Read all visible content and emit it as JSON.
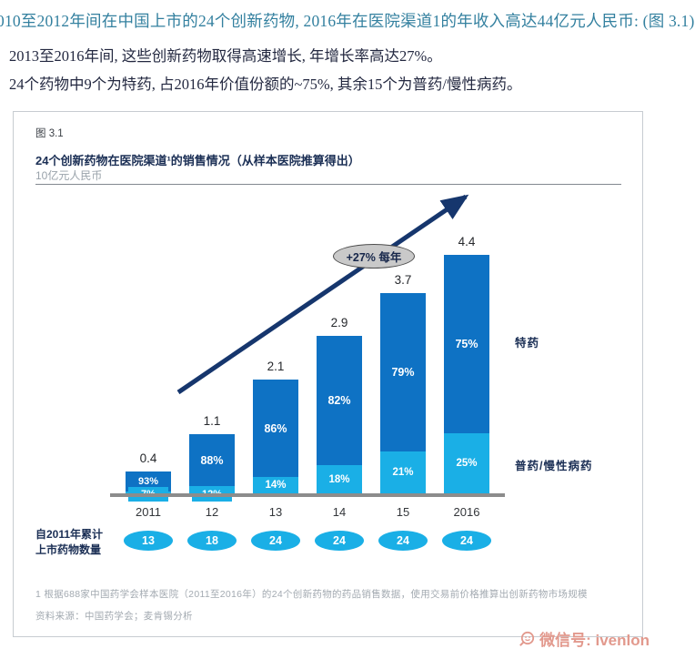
{
  "header": {
    "line1": "010至2012年间在中国上市的24个创新药物, 2016年在医院渠道1的年收入高达44亿元人民币: (图 3.1)",
    "line2": "2013至2016年间, 这些创新药物取得高速增长, 年增长率高达27%。",
    "line3": "24个药物中9个为特药, 占2016年价值份额的~75%, 其余15个为普药/慢性病药。"
  },
  "figure": {
    "fig_label": "图 3.1",
    "title": "24个创新药物在医院渠道¹的销售情况（从样本医院推算得出）",
    "unit": "10亿元人民币",
    "growth_badge": "+27% 每年",
    "legend_specialty": "特药",
    "legend_generic": "普药/慢性病药",
    "cumulative_label_line1": "自2011年累计",
    "cumulative_label_line2": "上市药物数量",
    "footnote": "1 根据688家中国药学会样本医院（2011至2016年）的24个创新药物的药品销售数据，使用交易前价格推算出创新药物市场规模",
    "source": "资料来源：中国药学会；麦肯锡分析"
  },
  "chart_data": {
    "type": "bar",
    "stacked": true,
    "title": "24个创新药物在医院渠道1的销售情况（从样本医院推算得出）",
    "ylabel": "10亿元人民币",
    "categories": [
      "2011",
      "12",
      "13",
      "14",
      "15",
      "2016"
    ],
    "totals": [
      0.4,
      1.1,
      2.1,
      2.9,
      3.7,
      4.4
    ],
    "series": [
      {
        "name": "特药",
        "color": "#0e72c4",
        "pct": [
          93,
          88,
          86,
          82,
          79,
          75
        ]
      },
      {
        "name": "普药/慢性病药",
        "color": "#1aafe6",
        "pct": [
          7,
          12,
          14,
          18,
          21,
          25
        ]
      }
    ],
    "cumulative_counts": [
      13,
      18,
      24,
      24,
      24,
      24
    ],
    "annotation": "+27% 每年",
    "legend_position": "right",
    "grid": false
  },
  "watermark": {
    "text": "微信号: ivenlon"
  },
  "colors": {
    "specialty_blue": "#0e72c4",
    "generic_blue": "#1aafe6",
    "arrow_navy": "#16366d",
    "axis_gray": "#8c8c8c",
    "title_navy": "#1b2f55",
    "header_teal": "#33809f",
    "watermark_red": "#e2998d"
  }
}
